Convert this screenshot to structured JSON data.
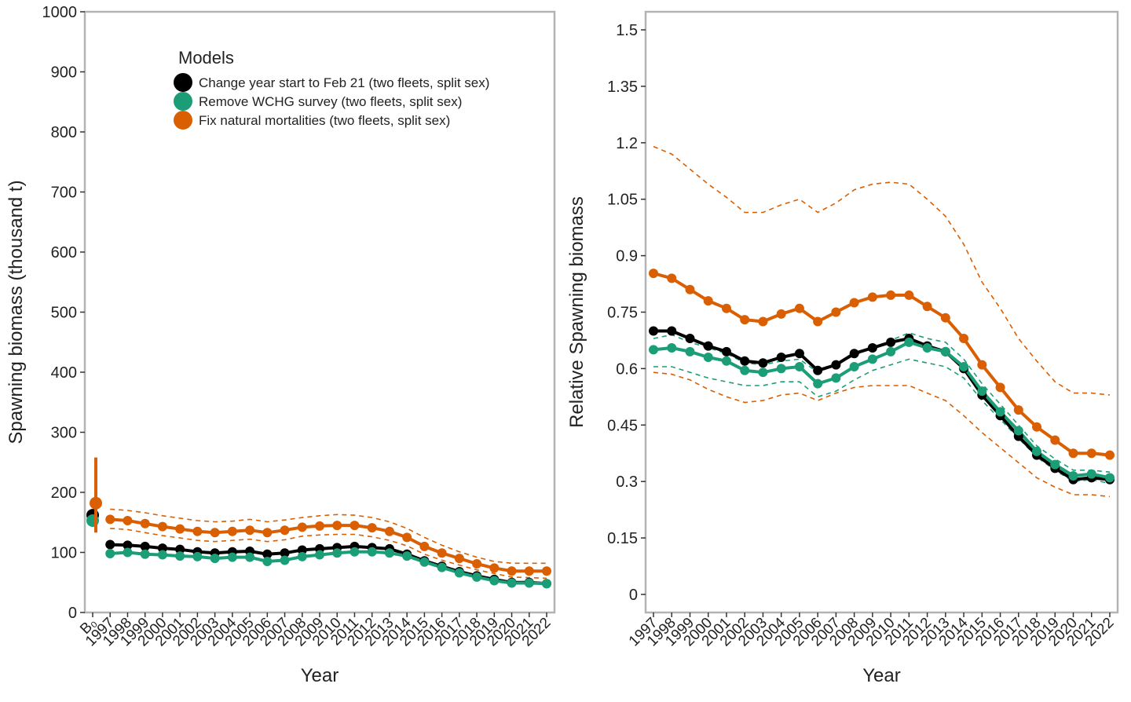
{
  "chart_data": [
    {
      "type": "line",
      "y_label": "Spawning biomass (thousand t)",
      "x_label": "Year",
      "reference_label": "B₀",
      "categories": [
        "1997",
        "1998",
        "1999",
        "2000",
        "2001",
        "2002",
        "2003",
        "2004",
        "2005",
        "2006",
        "2007",
        "2008",
        "2009",
        "2010",
        "2011",
        "2012",
        "2013",
        "2014",
        "2015",
        "2016",
        "2017",
        "2018",
        "2019",
        "2020",
        "2021",
        "2022"
      ],
      "ylim": [
        0,
        1000
      ],
      "yticks": [
        0,
        100,
        200,
        300,
        400,
        500,
        600,
        700,
        800,
        900,
        1000
      ],
      "legend": "top",
      "legend_title": "Models",
      "series": [
        {
          "name": "Change year start to Feb 21 (two fleets, split sex)",
          "color": "#000000",
          "reference": 162,
          "values": [
            113,
            112,
            110,
            107,
            105,
            101,
            99,
            101,
            102,
            97,
            99,
            104,
            106,
            108,
            110,
            108,
            106,
            97,
            86,
            77,
            68,
            61,
            55,
            50,
            50,
            48
          ]
        },
        {
          "name": "Remove WCHG survey (two fleets, split sex)",
          "color": "#1b9e77",
          "reference": 153,
          "values": [
            98,
            100,
            97,
            96,
            94,
            93,
            90,
            92,
            92,
            85,
            87,
            93,
            96,
            99,
            101,
            101,
            99,
            94,
            84,
            75,
            66,
            59,
            53,
            49,
            49,
            48
          ]
        },
        {
          "name": "Fix natural mortalities (two fleets, split sex)",
          "color": "#d95f02",
          "reference": 182,
          "reference_interval": [
            133,
            258
          ],
          "values": [
            155,
            153,
            148,
            143,
            139,
            135,
            133,
            135,
            137,
            133,
            137,
            142,
            144,
            145,
            145,
            141,
            135,
            125,
            110,
            99,
            90,
            81,
            74,
            69,
            69,
            69
          ],
          "upper": [
            172,
            170,
            166,
            161,
            157,
            153,
            151,
            152,
            155,
            151,
            154,
            158,
            161,
            163,
            162,
            158,
            151,
            140,
            125,
            112,
            101,
            92,
            85,
            82,
            82,
            82
          ],
          "lower": [
            140,
            138,
            133,
            128,
            124,
            120,
            118,
            120,
            122,
            118,
            121,
            127,
            129,
            130,
            130,
            126,
            120,
            111,
            97,
            87,
            79,
            71,
            65,
            59,
            58,
            57
          ]
        }
      ]
    },
    {
      "type": "line",
      "y_label": "Relative Spawning biomass",
      "x_label": "Year",
      "categories": [
        "1997",
        "1998",
        "1999",
        "2000",
        "2001",
        "2002",
        "2003",
        "2004",
        "2005",
        "2006",
        "2007",
        "2008",
        "2009",
        "2010",
        "2011",
        "2012",
        "2013",
        "2014",
        "2015",
        "2016",
        "2017",
        "2018",
        "2019",
        "2020",
        "2021",
        "2022"
      ],
      "ylim": [
        -0.048,
        1.548
      ],
      "yticks": [
        0,
        0.15,
        0.3,
        0.45,
        0.6,
        0.75,
        0.9,
        1.05,
        1.2,
        1.35,
        1.5
      ],
      "series": [
        {
          "color": "#000000",
          "values": [
            0.7,
            0.7,
            0.68,
            0.66,
            0.645,
            0.62,
            0.615,
            0.63,
            0.64,
            0.595,
            0.61,
            0.64,
            0.655,
            0.67,
            0.68,
            0.66,
            0.645,
            0.6,
            0.53,
            0.475,
            0.42,
            0.37,
            0.335,
            0.305,
            0.31,
            0.305
          ]
        },
        {
          "color": "#1b9e77",
          "values": [
            0.65,
            0.655,
            0.645,
            0.63,
            0.62,
            0.595,
            0.59,
            0.6,
            0.605,
            0.56,
            0.575,
            0.605,
            0.625,
            0.645,
            0.67,
            0.655,
            0.645,
            0.605,
            0.54,
            0.485,
            0.435,
            0.38,
            0.345,
            0.315,
            0.32,
            0.31
          ],
          "upper": [
            0.68,
            0.69,
            0.67,
            0.655,
            0.64,
            0.615,
            0.61,
            0.62,
            0.625,
            0.59,
            0.61,
            0.635,
            0.655,
            0.675,
            0.695,
            0.68,
            0.67,
            0.625,
            0.56,
            0.505,
            0.45,
            0.395,
            0.36,
            0.33,
            0.33,
            0.325
          ],
          "lower": [
            0.605,
            0.605,
            0.59,
            0.575,
            0.565,
            0.555,
            0.555,
            0.565,
            0.565,
            0.525,
            0.54,
            0.57,
            0.595,
            0.61,
            0.625,
            0.615,
            0.605,
            0.575,
            0.515,
            0.465,
            0.415,
            0.365,
            0.33,
            0.3,
            0.305,
            0.295
          ]
        },
        {
          "color": "#d95f02",
          "values": [
            0.853,
            0.84,
            0.81,
            0.78,
            0.76,
            0.73,
            0.725,
            0.745,
            0.76,
            0.725,
            0.75,
            0.775,
            0.79,
            0.795,
            0.795,
            0.765,
            0.735,
            0.68,
            0.61,
            0.55,
            0.49,
            0.445,
            0.41,
            0.375,
            0.375,
            0.37
          ],
          "upper": [
            1.19,
            1.17,
            1.13,
            1.09,
            1.055,
            1.015,
            1.015,
            1.035,
            1.05,
            1.015,
            1.04,
            1.075,
            1.09,
            1.095,
            1.09,
            1.05,
            1.005,
            0.93,
            0.83,
            0.76,
            0.68,
            0.62,
            0.565,
            0.535,
            0.535,
            0.53
          ],
          "lower": [
            0.59,
            0.585,
            0.57,
            0.545,
            0.525,
            0.51,
            0.515,
            0.53,
            0.535,
            0.515,
            0.535,
            0.55,
            0.555,
            0.555,
            0.555,
            0.535,
            0.515,
            0.475,
            0.43,
            0.39,
            0.35,
            0.31,
            0.285,
            0.265,
            0.265,
            0.26
          ]
        }
      ]
    }
  ]
}
